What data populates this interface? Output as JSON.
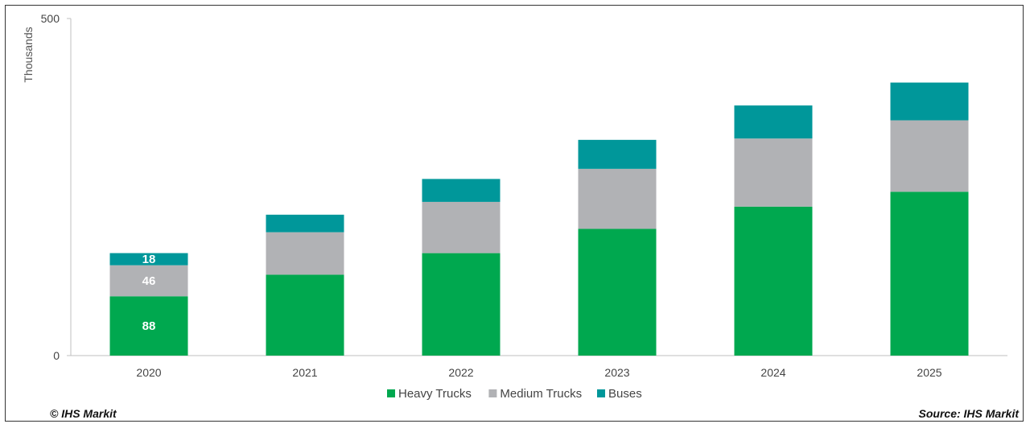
{
  "chart_data": {
    "type": "bar",
    "stacked": true,
    "categories": [
      "2020",
      "2021",
      "2022",
      "2023",
      "2024",
      "2025"
    ],
    "series": [
      {
        "name": "Heavy Trucks",
        "values": [
          88,
          120,
          152,
          188,
          221,
          243
        ],
        "color": "#00a84f"
      },
      {
        "name": "Medium Trucks",
        "values": [
          46,
          63,
          76,
          89,
          101,
          106
        ],
        "color": "#b1b2b5"
      },
      {
        "name": "Buses",
        "values": [
          18,
          26,
          34,
          43,
          49,
          56
        ],
        "color": "#00979a"
      }
    ],
    "data_labels": {
      "2020": [
        "88",
        "46",
        "18"
      ]
    },
    "ylabel": "Thousands",
    "ylim": [
      0,
      500
    ],
    "yticks": [
      "0",
      "500"
    ],
    "grid": false,
    "legend_position": "bottom"
  },
  "footer": {
    "copyright": "© IHS Markit",
    "source": "Source: IHS Markit"
  }
}
